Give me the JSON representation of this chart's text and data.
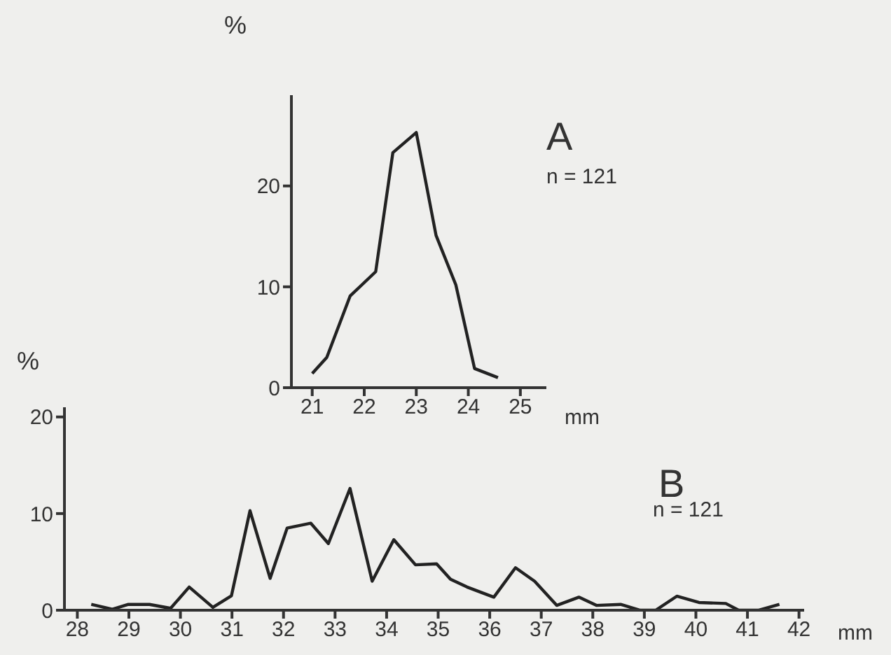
{
  "chart_data": [
    {
      "type": "line",
      "title": "A",
      "annotations": [
        "n = 121"
      ],
      "xlabel": "mm",
      "ylabel": "%",
      "xlim": [
        20.6,
        25.5
      ],
      "ylim": [
        0,
        29
      ],
      "xticks": [
        21,
        22,
        23,
        24,
        25
      ],
      "yticks": [
        0,
        10,
        20
      ],
      "x": [
        21.0,
        21.28,
        21.73,
        22.22,
        22.55,
        23.0,
        23.38,
        23.76,
        24.12,
        24.57
      ],
      "series": [
        {
          "color": "#222222",
          "values": [
            1.4,
            3.0,
            9.1,
            11.5,
            23.3,
            25.3,
            15.1,
            10.2,
            1.9,
            1.0
          ]
        }
      ]
    },
    {
      "type": "line",
      "title": "B",
      "annotations": [
        "n = 121"
      ],
      "xlabel": "mm",
      "ylabel": "%",
      "xlim": [
        27.75,
        42.1
      ],
      "ylim": [
        0,
        21
      ],
      "xticks": [
        28,
        29,
        30,
        31,
        32,
        33,
        34,
        35,
        36,
        37,
        38,
        39,
        40,
        41,
        42
      ],
      "yticks": [
        0,
        10,
        20
      ],
      "x": [
        28.27,
        28.68,
        28.99,
        29.4,
        29.81,
        30.17,
        30.63,
        30.99,
        31.35,
        31.74,
        32.07,
        32.53,
        32.87,
        33.29,
        33.72,
        34.14,
        34.56,
        34.97,
        35.24,
        35.56,
        36.08,
        36.5,
        36.87,
        37.3,
        37.73,
        38.07,
        38.54,
        38.92,
        39.22,
        39.63,
        40.06,
        40.58,
        40.83,
        41.21,
        41.62
      ],
      "series": [
        {
          "color": "#222222",
          "values": [
            0.6,
            0.1,
            0.6,
            0.6,
            0.2,
            2.4,
            0.3,
            1.5,
            10.3,
            3.3,
            8.5,
            9.0,
            6.9,
            12.6,
            3.0,
            7.3,
            4.7,
            4.8,
            3.2,
            2.4,
            1.35,
            4.4,
            3.0,
            0.5,
            1.35,
            0.5,
            0.6,
            0,
            0,
            1.45,
            0.8,
            0.7,
            0,
            0,
            0.6
          ]
        }
      ]
    }
  ]
}
